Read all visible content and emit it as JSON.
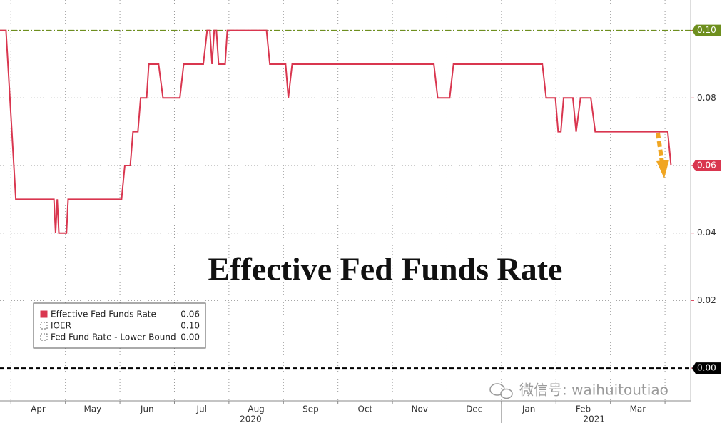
{
  "chart_data": {
    "type": "line",
    "annotation": "Effective Fed Funds Rate",
    "watermark": "微信号: waihuitoutiao",
    "xlim": [
      3.8,
      16.47
    ],
    "ylim": [
      -0.0097,
      0.109
    ],
    "xticks": [
      {
        "value": 4.5,
        "label": "Apr"
      },
      {
        "value": 5.5,
        "label": "May"
      },
      {
        "value": 6.5,
        "label": "Jun"
      },
      {
        "value": 7.5,
        "label": "Jul"
      },
      {
        "value": 8.5,
        "label": "Aug"
      },
      {
        "value": 9.5,
        "label": "Sep"
      },
      {
        "value": 10.5,
        "label": "Oct"
      },
      {
        "value": 11.5,
        "label": "Nov"
      },
      {
        "value": 12.5,
        "label": "Dec"
      },
      {
        "value": 13.5,
        "label": "Jan"
      },
      {
        "value": 14.5,
        "label": "Feb"
      },
      {
        "value": 15.5,
        "label": "Mar"
      }
    ],
    "xgrid": [
      4,
      5,
      6,
      7,
      8,
      9,
      10,
      11,
      12,
      13,
      14,
      15,
      16
    ],
    "year_labels": [
      {
        "value": 8.4,
        "label": "2020"
      },
      {
        "value": 14.7,
        "label": "2021"
      }
    ],
    "year_break": 13,
    "yticks": [
      {
        "value": 0,
        "label": "0.00"
      },
      {
        "value": 0.02,
        "label": "0.02"
      },
      {
        "value": 0.04,
        "label": "0.04"
      },
      {
        "value": 0.06,
        "label": "0.06"
      },
      {
        "value": 0.08,
        "label": "0.08"
      },
      {
        "value": 0.1,
        "label": "0.10"
      }
    ],
    "grid": true,
    "legend": "bottom-left",
    "series": [
      {
        "name": "Effective Fed Funds Rate",
        "color": "#d9364f",
        "legend_value": "0.06",
        "x": [
          3.8,
          3.91,
          4.09,
          4.79,
          4.82,
          4.85,
          4.88,
          5.02,
          5.05,
          6.03,
          6.09,
          6.19,
          6.24,
          6.33,
          6.38,
          6.49,
          6.53,
          6.71,
          6.79,
          7.1,
          7.17,
          7.53,
          7.6,
          7.65,
          7.69,
          7.73,
          7.77,
          7.81,
          7.93,
          7.97,
          8.69,
          8.75,
          9.04,
          9.09,
          9.16,
          11.76,
          11.83,
          12.05,
          12.12,
          13.75,
          13.82,
          13.99,
          14.04,
          14.09,
          14.14,
          14.31,
          14.37,
          14.45,
          14.64,
          14.72,
          16.05,
          16.11
        ],
        "values": [
          0.1,
          0.1,
          0.05,
          0.05,
          0.04,
          0.05,
          0.04,
          0.04,
          0.05,
          0.05,
          0.06,
          0.06,
          0.07,
          0.07,
          0.08,
          0.08,
          0.09,
          0.09,
          0.08,
          0.08,
          0.09,
          0.09,
          0.1,
          0.1,
          0.09,
          0.1,
          0.1,
          0.09,
          0.09,
          0.1,
          0.1,
          0.09,
          0.09,
          0.08,
          0.09,
          0.09,
          0.08,
          0.08,
          0.09,
          0.09,
          0.08,
          0.08,
          0.07,
          0.07,
          0.08,
          0.08,
          0.07,
          0.08,
          0.08,
          0.07,
          0.07,
          0.06
        ]
      },
      {
        "name": "IOER",
        "color": "#6e8f1e",
        "legend_value": "0.10",
        "x": [
          3.8,
          16.47
        ],
        "values": [
          0.1,
          0.1
        ]
      },
      {
        "name": "Fed Fund Rate - Lower Bound",
        "color": "#000000",
        "legend_value": "0.00",
        "x": [
          3.8,
          16.47
        ],
        "values": [
          0,
          0
        ]
      }
    ]
  }
}
